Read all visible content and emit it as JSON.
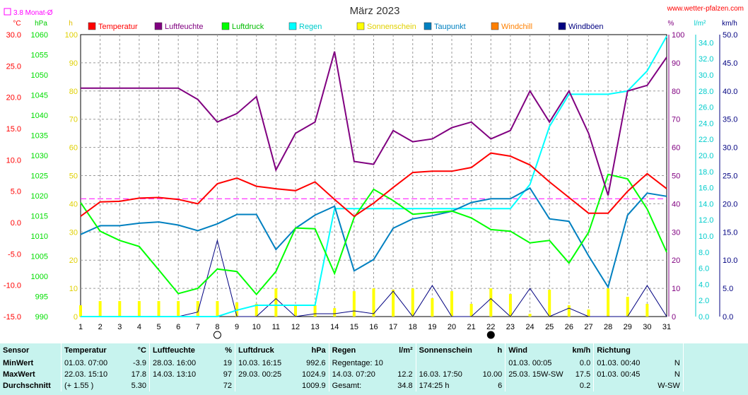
{
  "header": {
    "title": "März 2023",
    "site": "www.wetter-pfalzen.com",
    "monat_avg_label": "3.8 Monat-Ø"
  },
  "axis_units": {
    "temp": "°C",
    "hpa": "hPa",
    "hours": "h",
    "percent": "%",
    "lm2": "l/m²",
    "kmh": "km/h"
  },
  "legend": [
    {
      "key": "temp",
      "label": "Temperatur",
      "color": "#ff0000"
    },
    {
      "key": "hum",
      "label": "Luftfeuchte",
      "color": "#800080"
    },
    {
      "key": "press",
      "label": "Luftdruck",
      "color": "#00ff00"
    },
    {
      "key": "rain",
      "label": "Regen",
      "color": "#00ffff"
    },
    {
      "key": "sun",
      "label": "Sonnenschein",
      "color": "#ffff00"
    },
    {
      "key": "dew",
      "label": "Taupunkt",
      "color": "#0080c0"
    },
    {
      "key": "windchill",
      "label": "Windchill",
      "color": "#ff8000"
    },
    {
      "key": "gust",
      "label": "Windböen",
      "color": "#000080"
    }
  ],
  "chart_data": {
    "type": "line",
    "title": "März 2023",
    "x": [
      1,
      2,
      3,
      4,
      5,
      6,
      7,
      8,
      9,
      10,
      11,
      12,
      13,
      14,
      15,
      16,
      17,
      18,
      19,
      20,
      21,
      22,
      23,
      24,
      25,
      26,
      27,
      28,
      29,
      30,
      31
    ],
    "axes": {
      "temp_c": {
        "range": [
          -15,
          30
        ],
        "ticks": [
          "30.0",
          "25.0",
          "20.0",
          "15.0",
          "10.0",
          "5.0",
          "0.0",
          "-5.0",
          "-10.0",
          "-15.0"
        ]
      },
      "pressure_hpa": {
        "range": [
          990,
          1060
        ],
        "ticks": [
          "1060",
          "1055",
          "1050",
          "1045",
          "1040",
          "1035",
          "1030",
          "1025",
          "1020",
          "1015",
          "1010",
          "1005",
          "1000",
          "995",
          "990"
        ]
      },
      "sunshine_h": {
        "range": [
          0,
          100
        ],
        "ticks": [
          "100",
          "90",
          "80",
          "70",
          "60",
          "50",
          "40",
          "30",
          "20",
          "10",
          "0"
        ]
      },
      "humidity_pct": {
        "range": [
          0,
          100
        ],
        "ticks": [
          "100",
          "90",
          "80",
          "70",
          "60",
          "50",
          "40",
          "30",
          "20",
          "10",
          "0"
        ]
      },
      "rain_lm2": {
        "range": [
          0,
          35
        ],
        "ticks": [
          "34.0",
          "32.0",
          "30.0",
          "28.0",
          "26.0",
          "24.0",
          "22.0",
          "20.0",
          "18.0",
          "16.0",
          "14.0",
          "12.0",
          "10.0",
          "8.0",
          "6.0",
          "4.0",
          "2.0",
          "0.0"
        ]
      },
      "wind_kmh": {
        "range": [
          0,
          50
        ],
        "ticks": [
          "50.0",
          "45.0",
          "40.0",
          "35.0",
          "30.0",
          "25.0",
          "20.0",
          "15.0",
          "10.0",
          "5.0",
          "0.0"
        ]
      }
    },
    "month_avg_temp": 3.8,
    "series": [
      {
        "name": "Temperatur",
        "key": "temp",
        "axis": "temp_c",
        "values": [
          1.0,
          3.3,
          3.4,
          3.9,
          4.0,
          3.7,
          3.0,
          6.2,
          7.1,
          5.8,
          5.4,
          5.1,
          6.5,
          3.7,
          1.0,
          3.1,
          5.6,
          8.0,
          8.2,
          8.2,
          8.8,
          11.1,
          10.6,
          9.2,
          6.5,
          4.0,
          1.5,
          1.5,
          5.0,
          7.8,
          5.4
        ]
      },
      {
        "name": "Luftfeuchte",
        "key": "hum",
        "axis": "humidity_pct",
        "values": [
          81,
          81,
          81,
          81,
          81,
          81,
          77,
          69,
          72,
          78,
          52,
          65,
          69,
          94,
          55,
          54,
          66,
          62,
          63,
          67,
          69,
          63,
          66,
          80,
          69,
          80,
          65,
          43,
          80,
          82,
          92
        ]
      },
      {
        "name": "Luftdruck",
        "key": "press",
        "axis": "pressure_hpa",
        "values": [
          1018.3,
          1011.2,
          1008.9,
          1007.4,
          1001.6,
          995.7,
          997.0,
          1001.8,
          1001.2,
          995.5,
          1001.2,
          1012.0,
          1011.8,
          1000.7,
          1014.6,
          1021.6,
          1018.8,
          1015.4,
          1015.8,
          1016.2,
          1014.5,
          1011.6,
          1011.2,
          1008.3,
          1008.9,
          1003.3,
          1010.9,
          1025.3,
          1024.2,
          1016.7,
          1006.0
        ]
      },
      {
        "name": "Regen",
        "key": "rain",
        "axis": "rain_lm2",
        "values": [
          0,
          0,
          0,
          0,
          0,
          0,
          0,
          0,
          0.8,
          1.4,
          1.4,
          1.4,
          1.4,
          13.4,
          13.4,
          13.4,
          13.4,
          13.4,
          13.4,
          13.4,
          13.4,
          13.4,
          13.4,
          16.4,
          23.6,
          27.6,
          27.6,
          27.6,
          28.0,
          30.5,
          34.8
        ]
      },
      {
        "name": "Sonnenschein",
        "key": "sun",
        "axis": "sunshine_h",
        "values": [
          4,
          5.5,
          5.5,
          5.5,
          5.5,
          5.5,
          5.5,
          5.5,
          5,
          4.5,
          10,
          4,
          4,
          3,
          9,
          10,
          9.5,
          10,
          6.5,
          9,
          4.5,
          10,
          8,
          1,
          9.5,
          4,
          2.5,
          10,
          7,
          4.5,
          0
        ]
      },
      {
        "name": "Taupunkt",
        "key": "dew",
        "axis": "temp_c",
        "values": [
          -1.9,
          -0.5,
          -0.5,
          -0.1,
          0.1,
          -0.4,
          -1.3,
          -0.2,
          1.3,
          1.3,
          -4.3,
          -0.9,
          1.2,
          2.6,
          -7.7,
          -5.9,
          -0.9,
          0.6,
          1.1,
          1.8,
          3.2,
          3.8,
          3.8,
          5.5,
          0.6,
          0.2,
          -5.3,
          -10.3,
          1.2,
          4.7,
          4.2
        ]
      },
      {
        "name": "Windböen",
        "key": "gust",
        "axis": "wind_kmh",
        "values": [
          0,
          0,
          0,
          0,
          0,
          0,
          0.8,
          13.5,
          0,
          0,
          3.2,
          0,
          0.5,
          0.5,
          1.0,
          0.5,
          4.5,
          0,
          5.5,
          0,
          0,
          3.2,
          0,
          5.0,
          0,
          1.5,
          0,
          0,
          0,
          5.5,
          0
        ]
      }
    ],
    "moon_phases": [
      {
        "day": 8,
        "phase": "full"
      },
      {
        "day": 22,
        "phase": "new"
      }
    ]
  },
  "stats": {
    "headers": {
      "sensor": "Sensor",
      "temp": "Temperatur",
      "temp_unit": "°C",
      "hum": "Luftfeuchte",
      "hum_unit": "%",
      "press": "Luftdruck",
      "press_unit": "hPa",
      "rain": "Regen",
      "rain_unit": "l/m²",
      "sun": "Sonnenschein",
      "sun_unit": "h",
      "wind": "Wind",
      "wind_unit": "km/h",
      "dir": "Richtung"
    },
    "rows": [
      {
        "label": "MinWert",
        "temp_when": "01.03.  07:00",
        "temp_val": "-3.9",
        "hum_when": "28.03.  16:00",
        "hum_val": "19",
        "press_when": "10.03.  16:15",
        "press_val": "992.6",
        "rain_when": "Regentage: 10",
        "rain_val": "",
        "sun_when": "",
        "sun_val": "",
        "wind_when": "01.03.  00:05",
        "wind_val": "0.0",
        "dir_when": "01.03.  00:40",
        "dir_val": "N"
      },
      {
        "label": "MaxWert",
        "temp_when": "22.03.  15:10",
        "temp_val": "17.8",
        "hum_when": "14.03.  13:10",
        "hum_val": "97",
        "press_when": "29.03.  00:25",
        "press_val": "1024.9",
        "rain_when": "14.03.  07:20",
        "rain_val": "12.2",
        "sun_when": "16.03.  17:50",
        "sun_val": "10.00",
        "wind_when": "25.03.  15W-SW",
        "wind_val": "17.5",
        "dir_when": "01.03.  00:45",
        "dir_val": "N"
      },
      {
        "label": "Durchschnitt",
        "temp_when": "(+ 1.55 )",
        "temp_val": "5.30",
        "hum_when": "",
        "hum_val": "72",
        "press_when": "",
        "press_val": "1009.9",
        "rain_when": "Gesamt:",
        "rain_val": "34.8",
        "sun_when": "174:25 h",
        "sun_val": "6",
        "wind_when": "",
        "wind_val": "0.2",
        "dir_when": "",
        "dir_val": "W-SW"
      }
    ]
  }
}
